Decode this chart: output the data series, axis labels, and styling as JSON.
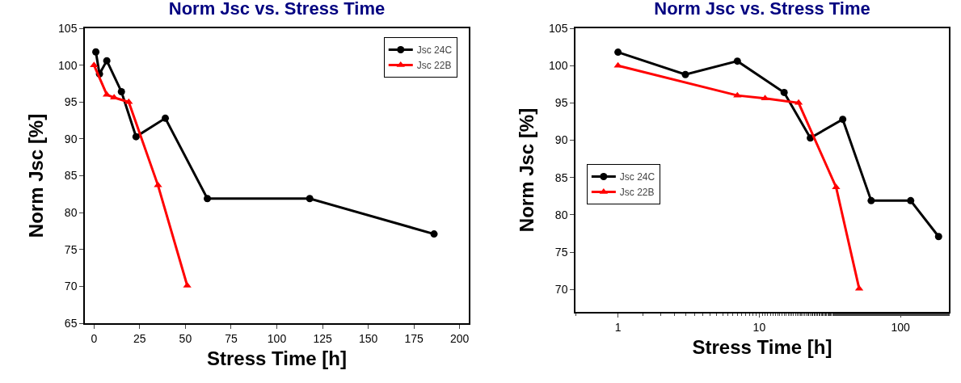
{
  "chart_data": [
    {
      "type": "line",
      "title": "Norm Jsc vs. Stress Time",
      "xlabel": "Stress Time [h]",
      "ylabel": "Norm Jsc [%]",
      "xlim": [
        -5,
        205
      ],
      "xticks": [
        0,
        25,
        50,
        75,
        100,
        125,
        150,
        175,
        200
      ],
      "ylim": [
        65,
        105
      ],
      "yticks": [
        65,
        70,
        75,
        80,
        85,
        90,
        95,
        100,
        105
      ],
      "grid": false,
      "legend": "top right",
      "series": [
        {
          "name": "Jsc 24C",
          "color": "#000000",
          "marker": "circle",
          "x": [
            1,
            3,
            7,
            15,
            23,
            39,
            62,
            118,
            186
          ],
          "values": [
            101.8,
            98.8,
            100.6,
            96.4,
            90.3,
            92.8,
            81.9,
            81.9,
            77.1
          ]
        },
        {
          "name": "Jsc 22B",
          "color": "#ff0000",
          "marker": "triangle",
          "x": [
            0,
            7,
            11,
            19,
            35,
            51
          ],
          "values": [
            100,
            96,
            95.6,
            95,
            83.7,
            70.1
          ]
        }
      ]
    },
    {
      "type": "line",
      "title": "Norm Jsc vs. Stress Time",
      "xlabel": "Stress Time [h]",
      "ylabel": "Norm Jsc [%]",
      "log": "x",
      "xlim": [
        0.5,
        220
      ],
      "xticks": [
        1,
        10,
        100
      ],
      "ylim": [
        67,
        105
      ],
      "yticks": [
        70,
        75,
        80,
        85,
        90,
        95,
        100,
        105
      ],
      "grid": false,
      "legend": "left",
      "series": [
        {
          "name": "Jsc 24C",
          "color": "#000000",
          "marker": "circle",
          "x": [
            1,
            3,
            7,
            15,
            23,
            39,
            62,
            118,
            186
          ],
          "values": [
            101.8,
            98.8,
            100.6,
            96.4,
            90.3,
            92.8,
            81.9,
            81.9,
            77.1
          ]
        },
        {
          "name": "Jsc 22B",
          "color": "#ff0000",
          "marker": "triangle",
          "x": [
            1,
            7,
            11,
            19,
            35,
            51
          ],
          "values": [
            100,
            96,
            95.6,
            95,
            83.7,
            70.1
          ]
        }
      ]
    }
  ]
}
